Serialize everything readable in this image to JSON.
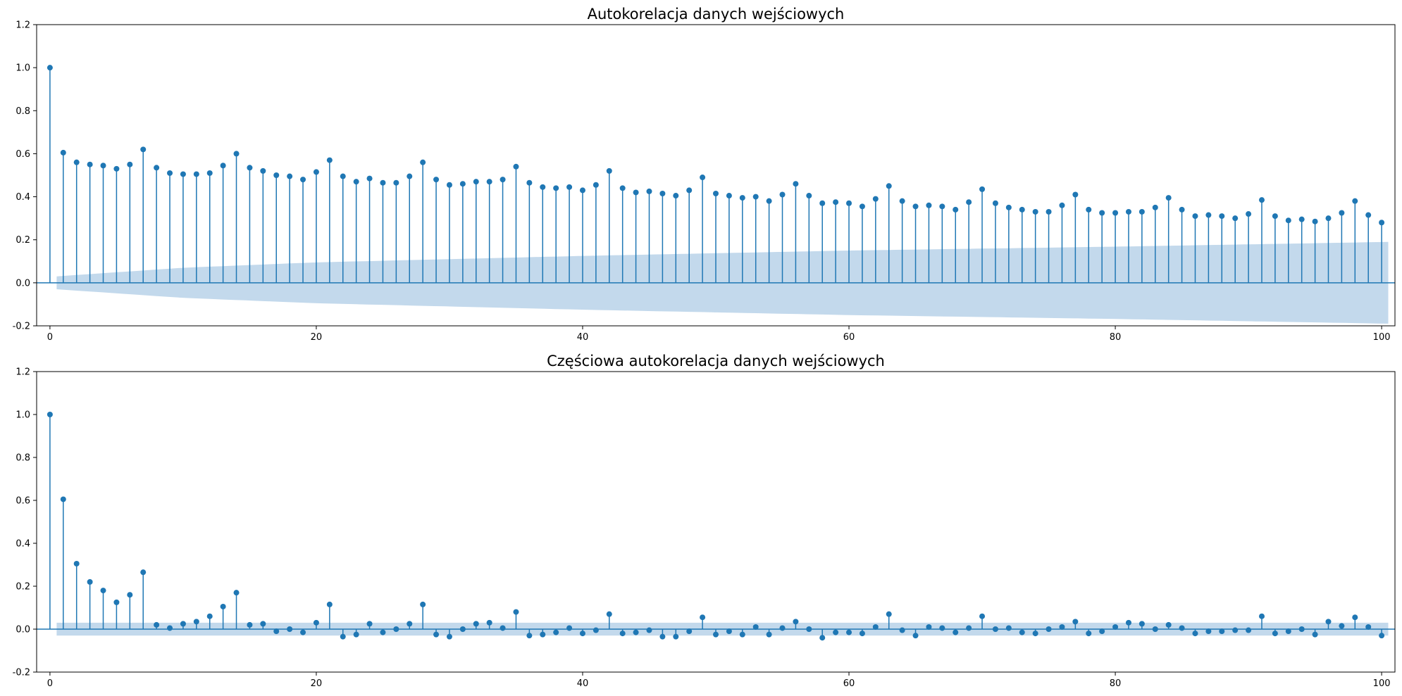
{
  "chart_data": [
    {
      "type": "stem",
      "title": "Autokorelacja danych wejściowych",
      "xlabel": "",
      "ylabel": "",
      "xlim": [
        -1,
        101
      ],
      "ylim": [
        -0.2,
        1.2
      ],
      "x_ticks": [
        0,
        20,
        40,
        60,
        80,
        100
      ],
      "y_ticks": [
        -0.2,
        0.0,
        0.2,
        0.4,
        0.6,
        0.8,
        1.0,
        1.2
      ],
      "lags": [
        0,
        1,
        2,
        3,
        4,
        5,
        6,
        7,
        8,
        9,
        10,
        11,
        12,
        13,
        14,
        15,
        16,
        17,
        18,
        19,
        20,
        21,
        22,
        23,
        24,
        25,
        26,
        27,
        28,
        29,
        30,
        31,
        32,
        33,
        34,
        35,
        36,
        37,
        38,
        39,
        40,
        41,
        42,
        43,
        44,
        45,
        46,
        47,
        48,
        49,
        50,
        51,
        52,
        53,
        54,
        55,
        56,
        57,
        58,
        59,
        60,
        61,
        62,
        63,
        64,
        65,
        66,
        67,
        68,
        69,
        70,
        71,
        72,
        73,
        74,
        75,
        76,
        77,
        78,
        79,
        80,
        81,
        82,
        83,
        84,
        85,
        86,
        87,
        88,
        89,
        90,
        91,
        92,
        93,
        94,
        95,
        96,
        97,
        98,
        99,
        100
      ],
      "values": [
        1.0,
        0.605,
        0.56,
        0.55,
        0.545,
        0.53,
        0.55,
        0.62,
        0.535,
        0.51,
        0.505,
        0.505,
        0.51,
        0.545,
        0.6,
        0.535,
        0.52,
        0.5,
        0.495,
        0.48,
        0.515,
        0.57,
        0.495,
        0.47,
        0.485,
        0.465,
        0.465,
        0.495,
        0.56,
        0.48,
        0.455,
        0.46,
        0.47,
        0.47,
        0.48,
        0.54,
        0.465,
        0.445,
        0.44,
        0.445,
        0.43,
        0.455,
        0.52,
        0.44,
        0.42,
        0.425,
        0.415,
        0.405,
        0.43,
        0.49,
        0.415,
        0.405,
        0.395,
        0.4,
        0.38,
        0.41,
        0.46,
        0.405,
        0.37,
        0.375,
        0.37,
        0.355,
        0.39,
        0.45,
        0.38,
        0.355,
        0.36,
        0.355,
        0.34,
        0.375,
        0.435,
        0.37,
        0.35,
        0.34,
        0.33,
        0.33,
        0.36,
        0.41,
        0.34,
        0.325,
        0.325,
        0.33,
        0.33,
        0.35,
        0.395,
        0.34,
        0.31,
        0.315,
        0.31,
        0.3,
        0.32,
        0.385,
        0.31,
        0.29,
        0.295,
        0.285,
        0.3,
        0.325,
        0.38,
        0.315,
        0.28
      ],
      "confidence_band_upper": [
        [
          0.5,
          0.03
        ],
        [
          10,
          0.07
        ],
        [
          20,
          0.095
        ],
        [
          40,
          0.125
        ],
        [
          60,
          0.15
        ],
        [
          80,
          0.168
        ],
        [
          100.5,
          0.19
        ]
      ],
      "colors": {
        "stem": "#1f77b4",
        "band": "#c3d9ec"
      }
    },
    {
      "type": "stem",
      "title": "Częściowa autokorelacja danych wejściowych",
      "xlabel": "",
      "ylabel": "",
      "xlim": [
        -1,
        101
      ],
      "ylim": [
        -0.2,
        1.2
      ],
      "x_ticks": [
        0,
        20,
        40,
        60,
        80,
        100
      ],
      "y_ticks": [
        -0.2,
        0.0,
        0.2,
        0.4,
        0.6,
        0.8,
        1.0,
        1.2
      ],
      "lags": [
        0,
        1,
        2,
        3,
        4,
        5,
        6,
        7,
        8,
        9,
        10,
        11,
        12,
        13,
        14,
        15,
        16,
        17,
        18,
        19,
        20,
        21,
        22,
        23,
        24,
        25,
        26,
        27,
        28,
        29,
        30,
        31,
        32,
        33,
        34,
        35,
        36,
        37,
        38,
        39,
        40,
        41,
        42,
        43,
        44,
        45,
        46,
        47,
        48,
        49,
        50,
        51,
        52,
        53,
        54,
        55,
        56,
        57,
        58,
        59,
        60,
        61,
        62,
        63,
        64,
        65,
        66,
        67,
        68,
        69,
        70,
        71,
        72,
        73,
        74,
        75,
        76,
        77,
        78,
        79,
        80,
        81,
        82,
        83,
        84,
        85,
        86,
        87,
        88,
        89,
        90,
        91,
        92,
        93,
        94,
        95,
        96,
        97,
        98,
        99,
        100
      ],
      "values": [
        1.0,
        0.605,
        0.305,
        0.22,
        0.18,
        0.125,
        0.16,
        0.265,
        0.02,
        0.005,
        0.025,
        0.035,
        0.06,
        0.105,
        0.17,
        0.02,
        0.025,
        -0.01,
        0.0,
        -0.015,
        0.03,
        0.115,
        -0.035,
        -0.025,
        0.025,
        -0.015,
        0.0,
        0.025,
        0.115,
        -0.025,
        -0.035,
        0.0,
        0.025,
        0.03,
        0.005,
        0.08,
        -0.03,
        -0.025,
        -0.015,
        0.005,
        -0.02,
        -0.005,
        0.07,
        -0.02,
        -0.015,
        -0.005,
        -0.035,
        -0.035,
        -0.01,
        0.055,
        -0.025,
        -0.01,
        -0.025,
        0.01,
        -0.025,
        0.005,
        0.035,
        0.0,
        -0.04,
        -0.015,
        -0.015,
        -0.02,
        0.01,
        0.07,
        -0.005,
        -0.03,
        0.01,
        0.005,
        -0.015,
        0.005,
        0.06,
        0.0,
        0.005,
        -0.015,
        -0.02,
        0.0,
        0.01,
        0.035,
        -0.02,
        -0.01,
        0.01,
        0.03,
        0.025,
        0.0,
        0.02,
        0.005,
        -0.02,
        -0.01,
        -0.01,
        -0.005,
        -0.005,
        0.06,
        -0.02,
        -0.01,
        0.0,
        -0.025,
        0.035,
        0.015,
        0.055,
        0.01,
        -0.03
      ],
      "confidence_band_upper": [
        [
          0.5,
          0.03
        ],
        [
          100.5,
          0.03
        ]
      ],
      "colors": {
        "stem": "#1f77b4",
        "band": "#c3d9ec"
      }
    }
  ]
}
